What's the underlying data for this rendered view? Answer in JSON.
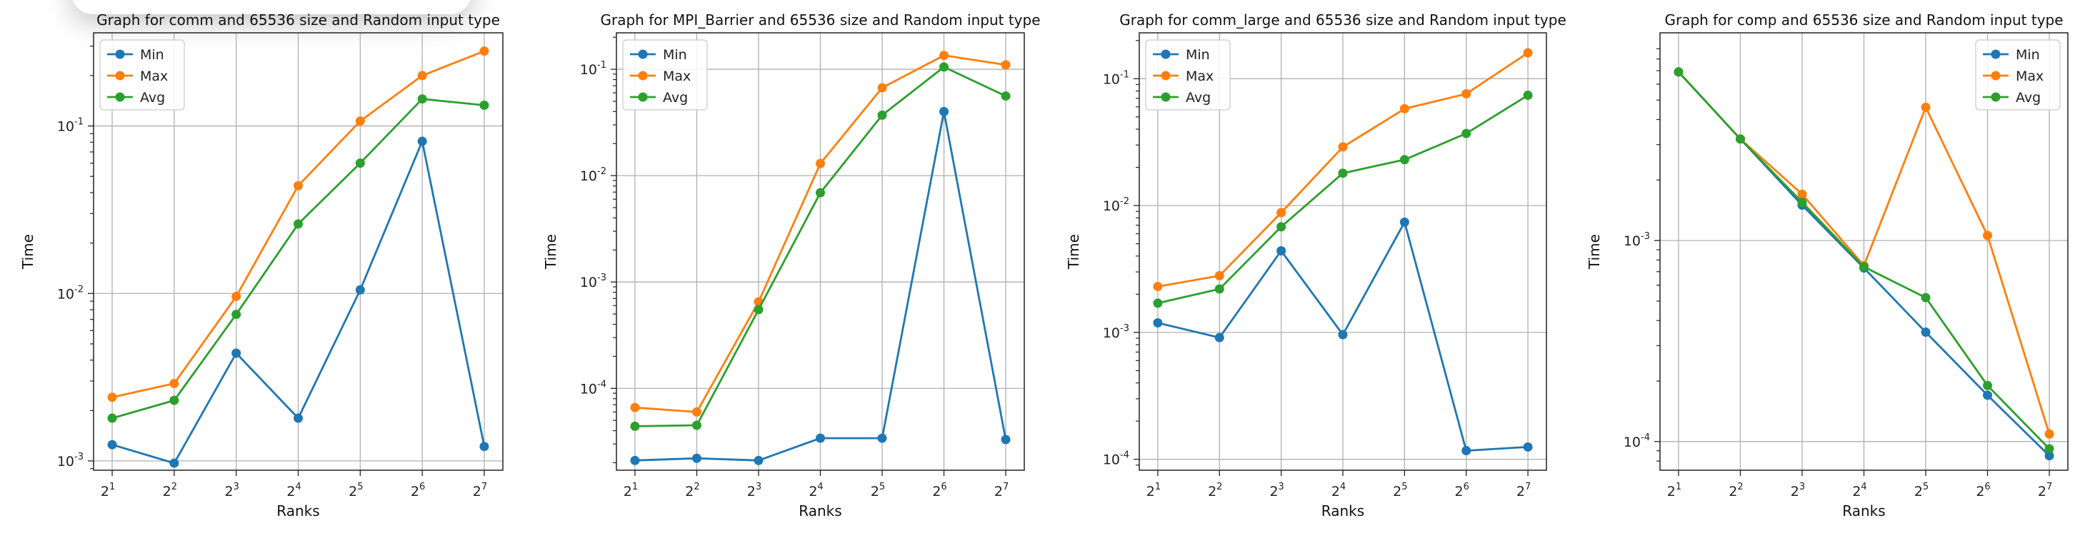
{
  "chart_data": [
    {
      "type": "line",
      "title": "Graph for comm and 65536 size and Random input type",
      "xlabel": "Ranks",
      "ylabel": "Time",
      "yscale": "log",
      "ylim": [
        0.00088,
        0.36
      ],
      "x": [
        2,
        4,
        8,
        16,
        32,
        64,
        128
      ],
      "xtick_labels": [
        "1",
        "2",
        "3",
        "4",
        "5",
        "6",
        "7"
      ],
      "yticks": [
        0.001,
        0.01,
        0.1
      ],
      "ytick_labels": [
        "10^-3",
        "10^-2",
        "10^-1"
      ],
      "legend_position": "upper left",
      "grid": true,
      "series": [
        {
          "name": "Min",
          "color": "#1f77b4",
          "values": [
            0.00125,
            0.00097,
            0.0044,
            0.0018,
            0.0105,
            0.081,
            0.00122
          ]
        },
        {
          "name": "Max",
          "color": "#ff7f0e",
          "values": [
            0.0024,
            0.0029,
            0.0096,
            0.044,
            0.107,
            0.2,
            0.28
          ]
        },
        {
          "name": "Avg",
          "color": "#2ca02c",
          "values": [
            0.0018,
            0.0023,
            0.0075,
            0.026,
            0.06,
            0.145,
            0.133
          ]
        }
      ]
    },
    {
      "type": "line",
      "title": "Graph for MPI_Barrier and 65536 size and Random input type",
      "xlabel": "Ranks",
      "ylabel": "Time",
      "yscale": "log",
      "ylim": [
        1.7e-05,
        0.22
      ],
      "x": [
        2,
        4,
        8,
        16,
        32,
        64,
        128
      ],
      "xtick_labels": [
        "1",
        "2",
        "3",
        "4",
        "5",
        "6",
        "7"
      ],
      "yticks": [
        0.0001,
        0.001,
        0.01,
        0.1
      ],
      "ytick_labels": [
        "10^-4",
        "10^-3",
        "10^-2",
        "10^-1"
      ],
      "legend_position": "upper left",
      "grid": true,
      "series": [
        {
          "name": "Min",
          "color": "#1f77b4",
          "values": [
            2.1e-05,
            2.2e-05,
            2.1e-05,
            3.4e-05,
            3.4e-05,
            0.04,
            3.3e-05
          ]
        },
        {
          "name": "Max",
          "color": "#ff7f0e",
          "values": [
            6.6e-05,
            6e-05,
            0.00065,
            0.013,
            0.067,
            0.135,
            0.11
          ]
        },
        {
          "name": "Avg",
          "color": "#2ca02c",
          "values": [
            4.4e-05,
            4.5e-05,
            0.00055,
            0.0069,
            0.037,
            0.105,
            0.056
          ]
        }
      ]
    },
    {
      "type": "line",
      "title": "Graph for comm_large and 65536 size and Random input type",
      "xlabel": "Ranks",
      "ylabel": "Time",
      "yscale": "log",
      "ylim": [
        8.2e-05,
        0.23
      ],
      "x": [
        2,
        4,
        8,
        16,
        32,
        64,
        128
      ],
      "xtick_labels": [
        "1",
        "2",
        "3",
        "4",
        "5",
        "6",
        "7"
      ],
      "yticks": [
        0.0001,
        0.001,
        0.01,
        0.1
      ],
      "ytick_labels": [
        "10^-4",
        "10^-3",
        "10^-2",
        "10^-1"
      ],
      "legend_position": "upper left",
      "grid": true,
      "series": [
        {
          "name": "Min",
          "color": "#1f77b4",
          "values": [
            0.00119,
            0.00091,
            0.0044,
            0.00096,
            0.0074,
            0.000117,
            0.000125
          ]
        },
        {
          "name": "Max",
          "color": "#ff7f0e",
          "values": [
            0.0023,
            0.0028,
            0.0088,
            0.029,
            0.058,
            0.076,
            0.16
          ]
        },
        {
          "name": "Avg",
          "color": "#2ca02c",
          "values": [
            0.0017,
            0.0022,
            0.0068,
            0.018,
            0.023,
            0.037,
            0.074
          ]
        }
      ]
    },
    {
      "type": "line",
      "title": "Graph for comp and 65536 size and Random input type",
      "xlabel": "Ranks",
      "ylabel": "Time",
      "yscale": "log",
      "ylim": [
        7.2e-05,
        0.0108
      ],
      "x": [
        2,
        4,
        8,
        16,
        32,
        64,
        128
      ],
      "xtick_labels": [
        "1",
        "2",
        "3",
        "4",
        "5",
        "6",
        "7"
      ],
      "yticks": [
        0.0001,
        0.001
      ],
      "ytick_labels": [
        "10^-4",
        "10^-3"
      ],
      "legend_position": "upper right",
      "grid": true,
      "series": [
        {
          "name": "Min",
          "color": "#1f77b4",
          "values": [
            0.0069,
            0.0032,
            0.0015,
            0.00073,
            0.00035,
            0.00017,
            8.5e-05
          ]
        },
        {
          "name": "Max",
          "color": "#ff7f0e",
          "values": [
            0.0069,
            0.0032,
            0.0017,
            0.00075,
            0.0046,
            0.00106,
            0.000109
          ]
        },
        {
          "name": "Avg",
          "color": "#2ca02c",
          "values": [
            0.0069,
            0.0032,
            0.00155,
            0.00074,
            0.00052,
            0.00019,
            9.2e-05
          ]
        }
      ]
    }
  ]
}
